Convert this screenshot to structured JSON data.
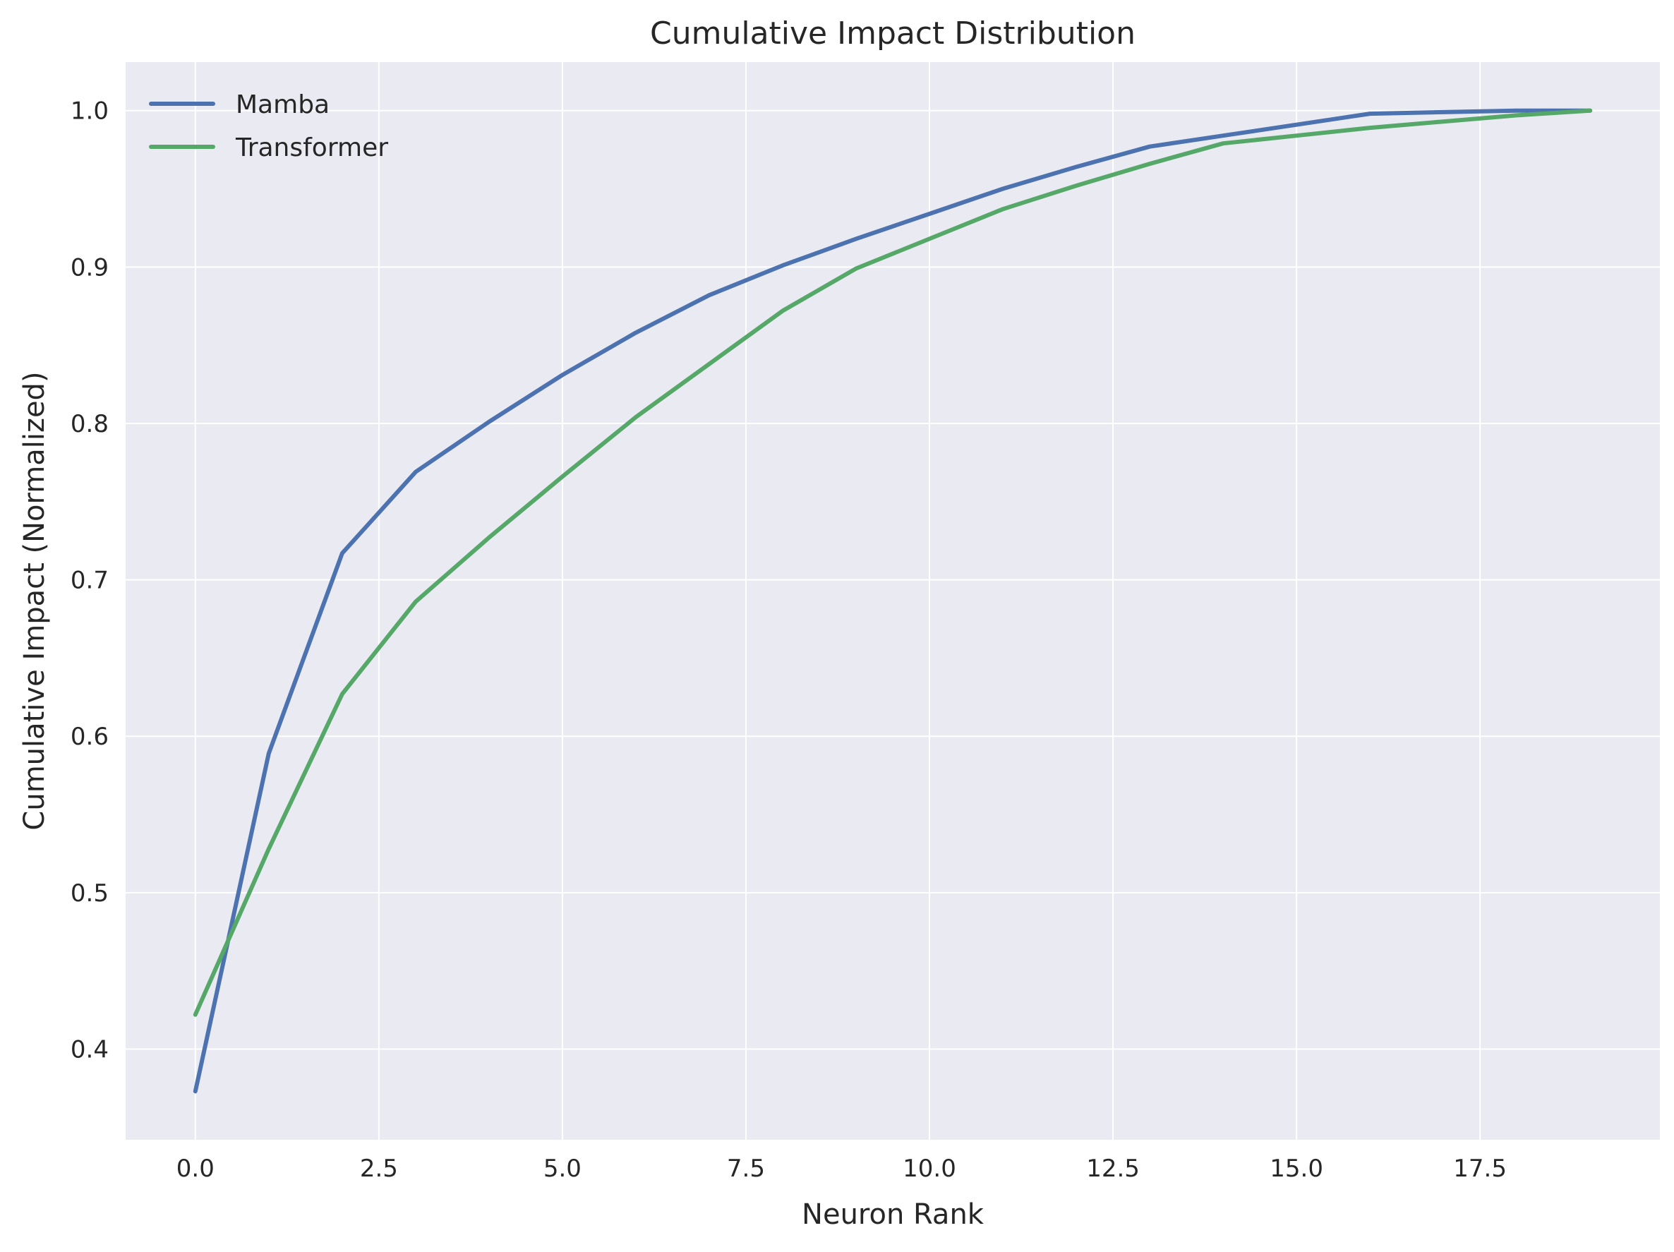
{
  "chart_data": {
    "type": "line",
    "title": "Cumulative Impact Distribution",
    "xlabel": "Neuron Rank",
    "ylabel": "Cumulative Impact (Normalized)",
    "xlim": [
      -0.95,
      19.95
    ],
    "ylim": [
      0.342,
      1.031
    ],
    "x_ticks": [
      0.0,
      2.5,
      5.0,
      7.5,
      10.0,
      12.5,
      15.0,
      17.5
    ],
    "x_tick_labels": [
      "0.0",
      "2.5",
      "5.0",
      "7.5",
      "10.0",
      "12.5",
      "15.0",
      "17.5"
    ],
    "y_ticks": [
      0.4,
      0.5,
      0.6,
      0.7,
      0.8,
      0.9,
      1.0
    ],
    "y_tick_labels": [
      "0.4",
      "0.5",
      "0.6",
      "0.7",
      "0.8",
      "0.9",
      "1.0"
    ],
    "grid": true,
    "legend_position": "top-left",
    "background_color": "#eaeaf2",
    "grid_color": "#ffffff",
    "x": [
      0,
      1,
      2,
      3,
      4,
      5,
      6,
      7,
      8,
      9,
      10,
      11,
      12,
      13,
      14,
      15,
      16,
      17,
      18,
      19
    ],
    "series": [
      {
        "name": "Mamba",
        "color": "#4c72b0",
        "values": [
          0.373,
          0.589,
          0.717,
          0.769,
          0.801,
          0.831,
          0.858,
          0.882,
          0.901,
          0.918,
          0.934,
          0.95,
          0.964,
          0.977,
          0.984,
          0.991,
          0.998,
          0.999,
          1.0,
          1.0
        ]
      },
      {
        "name": "Transformer",
        "color": "#55a868",
        "values": [
          0.422,
          0.528,
          0.627,
          0.686,
          0.727,
          0.766,
          0.804,
          0.838,
          0.872,
          0.899,
          0.918,
          0.937,
          0.952,
          0.966,
          0.979,
          0.984,
          0.989,
          0.993,
          0.997,
          1.0
        ]
      }
    ]
  }
}
